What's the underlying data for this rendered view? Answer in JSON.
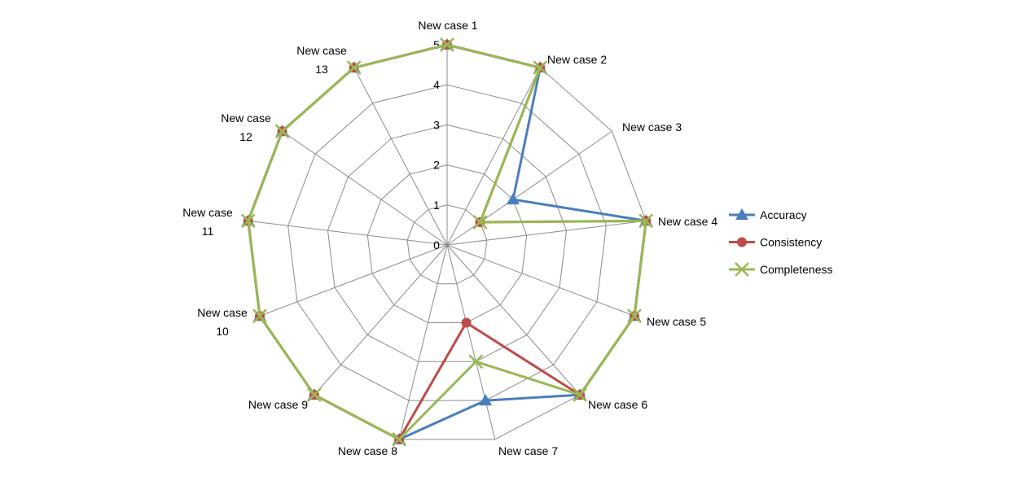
{
  "chart_data": {
    "type": "radar",
    "title": "",
    "categories": [
      "New case 1",
      "New case 2",
      "New case 3",
      "New case 4",
      "New case 5",
      "New case 6",
      "New case 7",
      "New case 8",
      "New case 9",
      "New case 10",
      "New case 11",
      "New case 12",
      "New case 13"
    ],
    "rlim": [
      0,
      5
    ],
    "ticks": [
      "0",
      "1",
      "2",
      "3",
      "4",
      "5"
    ],
    "grid": true,
    "legend_position": "right",
    "series": [
      {
        "name": "Accuracy",
        "color": "#4a7ebb",
        "marker": "triangle",
        "values": [
          5,
          5,
          2,
          5,
          5,
          5,
          4,
          5,
          5,
          5,
          5,
          5,
          5
        ]
      },
      {
        "name": "Consistency",
        "color": "#be4b48",
        "marker": "circle",
        "values": [
          5,
          5,
          1,
          5,
          5,
          5,
          2,
          5,
          5,
          5,
          5,
          5,
          5
        ]
      },
      {
        "name": "Completeness",
        "color": "#98b954",
        "marker": "x",
        "values": [
          5,
          5,
          1,
          5,
          5,
          5,
          3,
          5,
          5,
          5,
          5,
          5,
          5
        ]
      }
    ]
  }
}
